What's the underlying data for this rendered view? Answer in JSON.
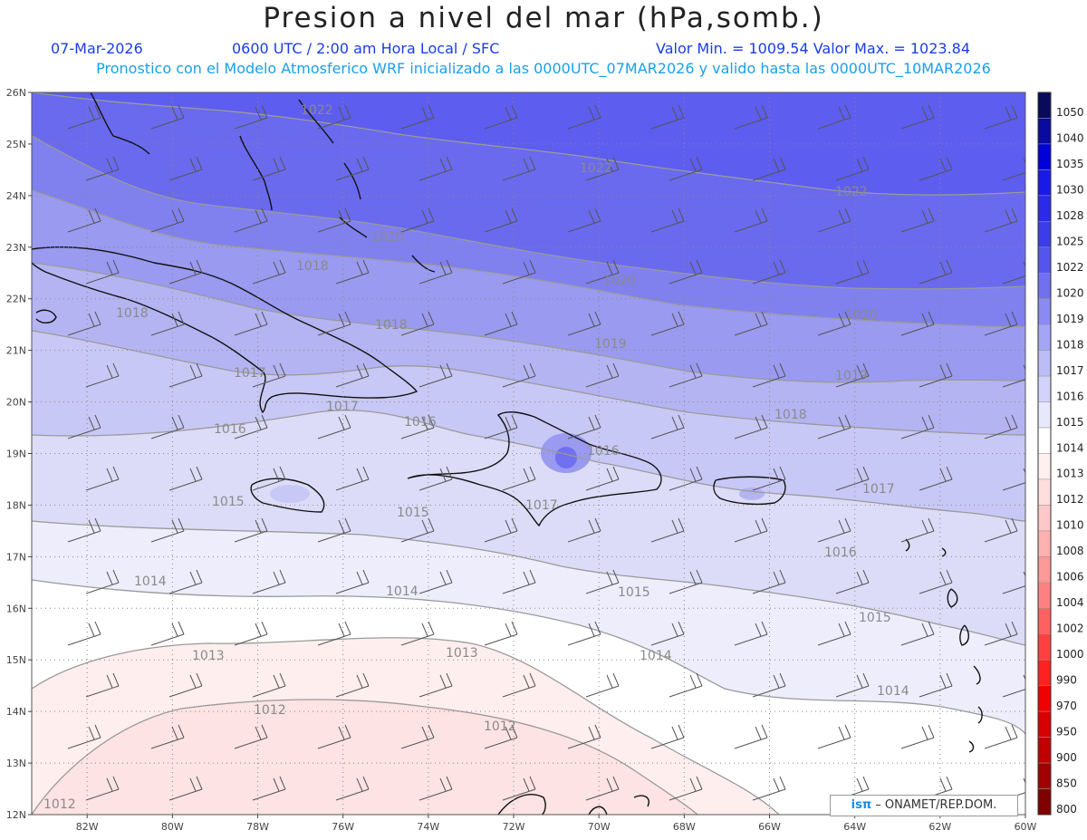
{
  "header": {
    "title": "Presion a nivel del mar (hPa,somb.)",
    "date": "07-Mar-2026",
    "time": "0600 UTC / 2:00 am Hora Local / SFC",
    "minmax": "Valor Min. = 1009.54  Valor Max. = 1023.84",
    "subtitle": "Pronostico con el Modelo Atmosferico WRF inicializado a las 0000UTC_07MAR2026 y valido hasta las  0000UTC_10MAR2026"
  },
  "map": {
    "lon_labels": [
      "82W",
      "80W",
      "78W",
      "76W",
      "74W",
      "72W",
      "70W",
      "68W",
      "66W",
      "64W",
      "62W",
      "60W"
    ],
    "lat_labels": [
      "26N",
      "25N",
      "24N",
      "23N",
      "22N",
      "21N",
      "20N",
      "19N",
      "18N",
      "17N",
      "16N",
      "15N",
      "14N",
      "13N",
      "12N"
    ],
    "lon_range": [
      -83.3,
      -60
    ],
    "lat_range": [
      12,
      26
    ],
    "contour_labels": [
      "1022",
      "1022",
      "1022",
      "1020",
      "1020",
      "1020",
      "1019",
      "1019",
      "1018",
      "1018",
      "1018",
      "1018",
      "1017",
      "1017",
      "1017",
      "1017",
      "1016",
      "1016",
      "1016",
      "1016",
      "1015",
      "1015",
      "1015",
      "1015",
      "1014",
      "1014",
      "1014",
      "1014",
      "1013",
      "1013",
      "1012",
      "1012",
      "1012"
    ]
  },
  "colorbar": {
    "levels": [
      "1050",
      "1040",
      "1035",
      "1030",
      "1028",
      "1025",
      "1022",
      "1020",
      "1019",
      "1018",
      "1017",
      "1016",
      "1015",
      "1014",
      "1013",
      "1012",
      "1010",
      "1008",
      "1006",
      "1004",
      "1002",
      "1000",
      "990",
      "970",
      "950",
      "900",
      "850",
      "800"
    ],
    "colors": [
      "#0a0a5a",
      "#0a0aa0",
      "#0000d8",
      "#1a1ae8",
      "#2a2ae8",
      "#3c3ce8",
      "#5555ee",
      "#7070f0",
      "#8a8af2",
      "#a5a5f5",
      "#bcbcf7",
      "#d2d2fa",
      "#e8e8fc",
      "#ffffff",
      "#fff0f0",
      "#ffdede",
      "#ffc8c8",
      "#ffb0b0",
      "#ff9898",
      "#ff8080",
      "#ff6060",
      "#ff4040",
      "#ff2020",
      "#f00000",
      "#d80000",
      "#c00000",
      "#a00000",
      "#800000"
    ]
  },
  "credit": {
    "logo": "isπ",
    "text": "– ONAMET/REP.DOM."
  }
}
